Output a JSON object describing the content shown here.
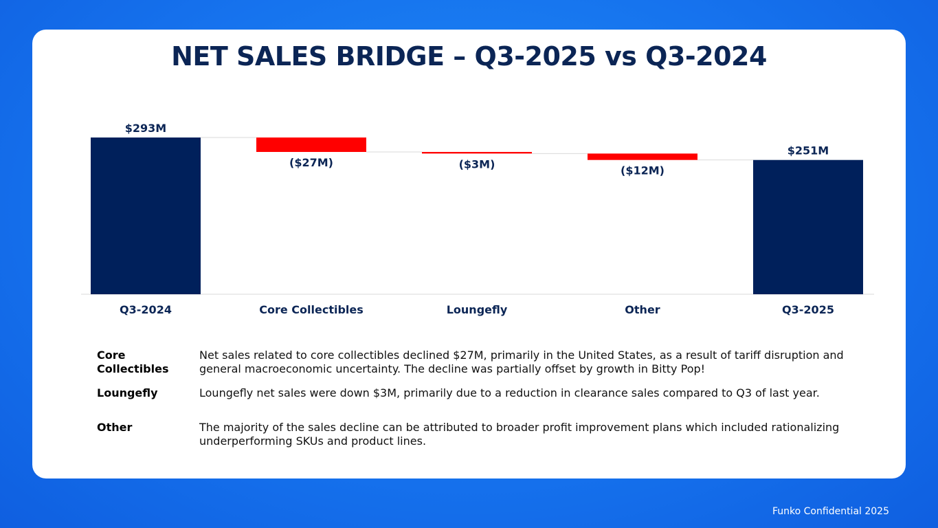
{
  "title": "NET SALES BRIDGE – Q3-2025 vs Q3-2024",
  "chart_data": {
    "type": "waterfall",
    "categories": [
      "Q3-2024",
      "Core Collectibles",
      "Loungefly",
      "Other",
      "Q3-2025"
    ],
    "values": [
      293,
      -27,
      -3,
      -12,
      251
    ],
    "kinds": [
      "total",
      "delta",
      "delta",
      "delta",
      "total"
    ],
    "value_labels": [
      "$293M",
      "($27M)",
      "($3M)",
      "($12M)",
      "$251M"
    ],
    "unit": "$M",
    "ylim": [
      0,
      293
    ],
    "colors": {
      "total": "#00205b",
      "decrease": "#ff0000",
      "text": "#0b2555",
      "axis": "#d9d9d9"
    }
  },
  "notes": [
    {
      "label": "Core Collectibles",
      "text": "Net sales related to core collectibles declined $27M, primarily in the United States, as a result of tariff disruption and general macroeconomic uncertainty. The decline was partially offset by growth in Bitty Pop!"
    },
    {
      "label": "Loungefly",
      "text": "Loungefly net sales were down $3M, primarily due to a reduction in clearance sales compared to Q3 of last year."
    },
    {
      "label": "Other",
      "text": "The majority of the sales decline can be attributed to broader profit improvement plans which included rationalizing underperforming SKUs and product lines."
    }
  ],
  "footer": "Funko Confidential 2025"
}
